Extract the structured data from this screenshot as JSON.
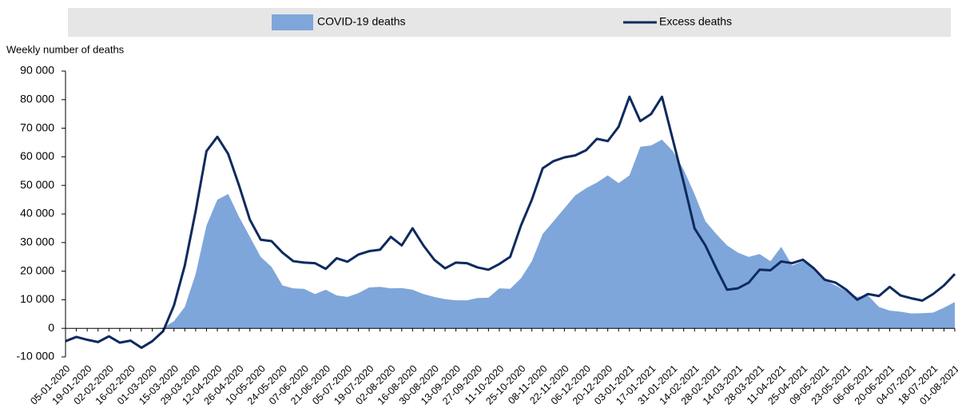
{
  "chart_data": {
    "type": "combo",
    "y_label": "Weekly number of deaths",
    "categories": [
      "05-01-2020",
      null,
      "19-01-2020",
      null,
      "02-02-2020",
      null,
      "16-02-2020",
      null,
      "01-03-2020",
      null,
      "15-03-2020",
      null,
      "29-03-2020",
      null,
      "12-04-2020",
      null,
      "26-04-2020",
      null,
      "10-05-2020",
      null,
      "24-05-2020",
      null,
      "07-06-2020",
      null,
      "21-06-2020",
      null,
      "05-07-2020",
      null,
      "19-07-2020",
      null,
      "02-08-2020",
      null,
      "16-08-2020",
      null,
      "30-08-2020",
      null,
      "13-09-2020",
      null,
      "27-09-2020",
      null,
      "11-10-2020",
      null,
      "25-10-2020",
      null,
      "08-11-2020",
      null,
      "22-11-2020",
      null,
      "06-12-2020",
      null,
      "20-12-2020",
      null,
      "03-01-2021",
      null,
      "17-01-2021",
      null,
      "31-01-2021",
      null,
      "14-02-2021",
      null,
      "28-02-2021",
      null,
      "14-03-2021",
      null,
      "28-03-2021",
      null,
      "11-04-2021",
      null,
      "25-04-2021",
      null,
      "09-05-2021",
      null,
      "23-05-2021",
      null,
      "06-06-2021",
      null,
      "20-06-2021",
      null,
      "04-07-2021",
      null,
      "18-07-2021",
      null,
      "01-08-2021"
    ],
    "series": [
      {
        "name": "COVID-19 deaths",
        "type": "area",
        "color": "#7ea6da",
        "values": [
          0,
          0,
          0,
          0,
          0,
          0,
          0,
          0,
          0,
          200,
          2500,
          7500,
          19000,
          36000,
          45000,
          47000,
          39000,
          32000,
          25000,
          21500,
          15000,
          14000,
          13800,
          12000,
          13500,
          11500,
          11000,
          12300,
          14300,
          14500,
          14000,
          14100,
          13500,
          12000,
          11000,
          10200,
          9800,
          9800,
          10600,
          10700,
          14000,
          13800,
          17500,
          23500,
          33000,
          37500,
          42000,
          46500,
          49000,
          51000,
          53500,
          50800,
          53500,
          63500,
          64000,
          66000,
          62000,
          55500,
          47000,
          37500,
          33000,
          29000,
          26500,
          25000,
          26000,
          23500,
          28500,
          22000,
          23500,
          21500,
          17000,
          15000,
          13000,
          11000,
          11500,
          7500,
          6200,
          5800,
          5200,
          5300,
          5500,
          7200,
          9200
        ]
      },
      {
        "name": "Excess deaths",
        "type": "line",
        "color": "#0e2a5e",
        "values": [
          -4500,
          -3000,
          -4000,
          -4800,
          -2800,
          -5000,
          -4300,
          -6800,
          -4500,
          -1000,
          8000,
          22000,
          41000,
          62000,
          67000,
          61000,
          50000,
          38000,
          31000,
          30500,
          26500,
          23500,
          23000,
          22800,
          20800,
          24500,
          23300,
          25800,
          27000,
          27500,
          32000,
          29000,
          35000,
          29000,
          24000,
          21000,
          23000,
          22800,
          21300,
          20500,
          22500,
          25000,
          36000,
          45000,
          56000,
          58500,
          59800,
          60500,
          62300,
          66300,
          65500,
          70500,
          81000,
          72500,
          75000,
          81000,
          66000,
          51000,
          35000,
          29000,
          21000,
          13500,
          14000,
          16000,
          20500,
          20300,
          23400,
          22800,
          24000,
          21000,
          17000,
          16000,
          13500,
          10000,
          12000,
          11300,
          14500,
          11500,
          10500,
          9700,
          12000,
          15000,
          19000
        ]
      }
    ],
    "ylim": [
      -10000,
      90000
    ],
    "yticks": [
      {
        "value": -10000,
        "label": "-10 000"
      },
      0,
      {
        "value": 10000,
        "label": "10 000"
      },
      {
        "value": 20000,
        "label": "20 000"
      },
      {
        "value": 30000,
        "label": "30 000"
      },
      {
        "value": 40000,
        "label": "40 000"
      },
      {
        "value": 50000,
        "label": "50 000"
      },
      {
        "value": 60000,
        "label": "60 000"
      },
      {
        "value": 70000,
        "label": "70 000"
      },
      {
        "value": 80000,
        "label": "80 000"
      },
      {
        "value": 90000,
        "label": "90 000"
      }
    ],
    "grid": false
  }
}
